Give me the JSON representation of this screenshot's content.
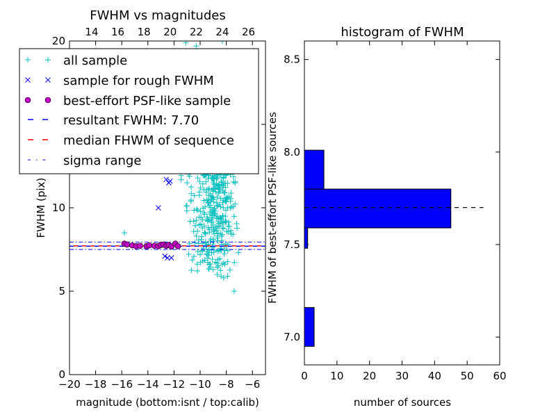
{
  "chart_data": [
    {
      "type": "scatter",
      "title": "FWHM vs magnitudes",
      "xlabel": "magnitude (bottom:isnt / top:calib)",
      "ylabel": "FWHM (pix)",
      "xlim": [
        -20,
        -5
      ],
      "ylim": [
        0,
        20
      ],
      "xticks": [
        -20,
        -18,
        -16,
        -14,
        -12,
        -10,
        -8,
        -6
      ],
      "xtick_labels": [
        "−20",
        "−18",
        "−16",
        "−14",
        "−12",
        "−10",
        "−8",
        "−6"
      ],
      "yticks": [
        0,
        5,
        10,
        15,
        20
      ],
      "ytick_labels": [
        "0",
        "5",
        "10",
        "15",
        "20"
      ],
      "top_xlim": [
        12.3,
        27.3
      ],
      "top_xticks": [
        14,
        16,
        18,
        20,
        22,
        24,
        26
      ],
      "top_xtick_labels": [
        "14",
        "16",
        "18",
        "20",
        "22",
        "24",
        "26"
      ],
      "legend_location": "upper-left",
      "series": [
        {
          "name": "all sample",
          "marker": "+",
          "color": "#00BFBF",
          "points": [
            [
              -15.8,
              8.5
            ],
            [
              -7.4,
              5.0
            ],
            [
              -10.3,
              19.7
            ],
            [
              -11.1,
              19.9
            ],
            [
              -8.3,
              20.0
            ],
            [
              -12.0,
              14.8
            ],
            [
              -11.6,
              12.2
            ],
            [
              -11.0,
              11.5
            ],
            [
              -10.7,
              10.4
            ],
            [
              -10.5,
              9.2
            ],
            [
              -10.2,
              8.6
            ],
            [
              -10.4,
              7.9
            ],
            [
              -10.0,
              7.2
            ],
            [
              -9.8,
              6.8
            ],
            [
              -9.5,
              7.5
            ],
            [
              -9.3,
              6.6
            ],
            [
              -9.0,
              6.3
            ],
            [
              -8.7,
              6.0
            ],
            [
              -8.4,
              5.9
            ],
            [
              -8.2,
              5.8
            ],
            [
              -7.9,
              5.9
            ],
            [
              -9.6,
              12.0
            ],
            [
              -9.2,
              12.8
            ],
            [
              -9.0,
              11.5
            ],
            [
              -8.6,
              13.5
            ]
          ]
        },
        {
          "name": "sample for rough FWHM",
          "marker": "x",
          "color": "#0000FF",
          "points": [
            [
              -13.2,
              10.0
            ],
            [
              -12.6,
              11.7
            ],
            [
              -12.3,
              11.6
            ],
            [
              -12.4,
              11.5
            ],
            [
              -12.7,
              7.1
            ],
            [
              -12.5,
              7.0
            ],
            [
              -12.2,
              7.0
            ],
            [
              -14.1,
              7.7
            ],
            [
              -13.0,
              7.8
            ]
          ]
        },
        {
          "name": "best-effort PSF-like sample",
          "marker": "o",
          "color": "#BF00BF",
          "points": [
            [
              -15.8,
              7.85
            ],
            [
              -15.6,
              7.8
            ],
            [
              -15.2,
              7.75
            ],
            [
              -14.9,
              7.7
            ],
            [
              -14.6,
              7.72
            ],
            [
              -14.1,
              7.7
            ],
            [
              -13.9,
              7.75
            ],
            [
              -13.5,
              7.72
            ],
            [
              -13.2,
              7.7
            ],
            [
              -13.0,
              7.78
            ],
            [
              -12.8,
              7.8
            ],
            [
              -12.6,
              7.72
            ],
            [
              -12.4,
              7.78
            ],
            [
              -12.2,
              7.68
            ],
            [
              -11.9,
              7.85
            ],
            [
              -11.7,
              7.7
            ]
          ]
        }
      ],
      "lines": [
        {
          "name": "resultant FWHM: 7.70",
          "y": 7.7,
          "color": "#0000FF",
          "style": "dashed"
        },
        {
          "name": "median FHWM of sequence",
          "y": 7.72,
          "color": "#FF0000",
          "style": "dashed"
        },
        {
          "name": "sigma range",
          "y": [
            7.5,
            7.95
          ],
          "color": "#0000FF",
          "style": "dashdot"
        }
      ]
    },
    {
      "type": "bar",
      "orientation": "horizontal",
      "title": "histogram of FWHM",
      "xlabel": "number of sources",
      "ylabel": "FWHM of best-effort PSF-like sources",
      "xlim": [
        0,
        60
      ],
      "ylim": [
        6.85,
        8.6
      ],
      "xticks": [
        0,
        10,
        20,
        30,
        40,
        50,
        60
      ],
      "xtick_labels": [
        "0",
        "10",
        "20",
        "30",
        "40",
        "50",
        "60"
      ],
      "yticks": [
        7.0,
        7.5,
        8.0,
        8.5
      ],
      "ytick_labels": [
        "7.0",
        "7.5",
        "8.0",
        "8.5"
      ],
      "color": "#0000FF",
      "bins": [
        {
          "y0": 6.95,
          "y1": 7.16,
          "count": 3
        },
        {
          "y0": 7.48,
          "y1": 7.59,
          "count": 1
        },
        {
          "y0": 7.59,
          "y1": 7.8,
          "count": 45
        },
        {
          "y0": 7.8,
          "y1": 8.01,
          "count": 6
        }
      ],
      "reference_line": {
        "y": 7.7,
        "x": [
          0,
          55
        ],
        "color": "#000000",
        "style": "dashed"
      }
    }
  ]
}
